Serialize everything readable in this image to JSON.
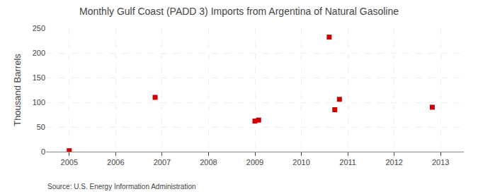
{
  "chart_data": {
    "type": "scatter",
    "title": "Monthly Gulf Coast (PADD 3) Imports from Argentina of Natural Gasoline",
    "ylabel": "Thousand Barrels",
    "annotation": "Source: U.S. Energy Information Administration",
    "x": [
      2005.0,
      2006.85,
      2009.0,
      2009.08,
      2010.6,
      2010.72,
      2010.82,
      2012.82
    ],
    "values": [
      2,
      110,
      62,
      64,
      232,
      85,
      106,
      90
    ],
    "color": "#cc0000",
    "marker": "square",
    "xlim": [
      2004.5,
      2013.5
    ],
    "ylim": [
      0,
      250
    ],
    "xticks": [
      2005,
      2006,
      2007,
      2008,
      2009,
      2010,
      2011,
      2012,
      2013
    ],
    "yticks": [
      0,
      50,
      100,
      150,
      200,
      250
    ],
    "grid": true
  }
}
